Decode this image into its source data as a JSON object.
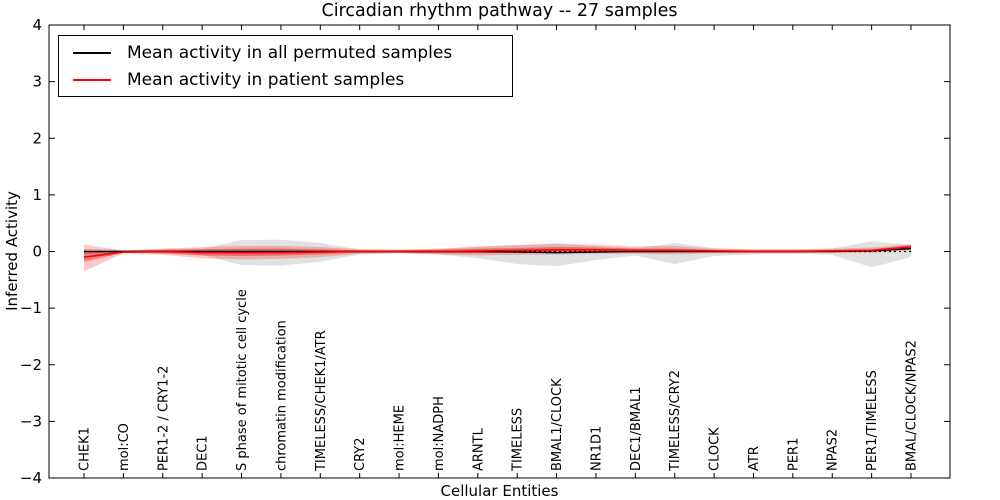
{
  "page": {
    "title": "Circadian rhythm pathway -- 27 samples"
  },
  "chart_data": {
    "type": "line",
    "title": "Circadian rhythm pathway -- 27 samples",
    "xlabel": "Cellular Entities",
    "ylabel": "Inferred Activity",
    "ylim": [
      -4,
      4
    ],
    "yticks": [
      -4,
      -3,
      -2,
      -1,
      0,
      1,
      2,
      3,
      4
    ],
    "grid": false,
    "legend_position": "upper left",
    "background_color": "#ffffff",
    "axis_color": "#000000",
    "categories": [
      "CHEK1",
      "mol:CO",
      "PER1-2 / CRY1-2",
      "DEC1",
      "S phase of mitotic cell cycle",
      "chromatin modification",
      "TIMELESS/CHEK1/ATR",
      "CRY2",
      "mol:HEME",
      "mol:NADPH",
      "ARNTL",
      "TIMELESS",
      "BMAL1/CLOCK",
      "NR1D1",
      "DEC1/BMAL1",
      "TIMELESS/CRY2",
      "CLOCK",
      "ATR",
      "PER1",
      "NPAS2",
      "PER1/TIMELESS",
      "BMAL/CLOCK/NPAS2"
    ],
    "series": [
      {
        "name": "Mean activity in all permuted samples",
        "color": "#000000",
        "values": [
          0,
          0,
          0,
          0,
          0,
          0,
          0,
          0,
          0,
          0,
          0,
          -0.01,
          -0.02,
          -0.01,
          0,
          0,
          0,
          0,
          0,
          0,
          0.01,
          0.05
        ]
      },
      {
        "name": "Mean activity in patient samples",
        "color": "#ff0000",
        "values": [
          -0.1,
          -0.01,
          0,
          -0.02,
          -0.02,
          -0.02,
          -0.01,
          0,
          0,
          0,
          0.01,
          0.02,
          0.03,
          0.03,
          0.02,
          0.02,
          0.01,
          0,
          0,
          0.01,
          0.02,
          0.08
        ]
      }
    ],
    "bands": [
      {
        "name": "permuted samples spread",
        "color": "#aaaaaa",
        "opacity": 0.35,
        "lo": [
          -0.05,
          -0.02,
          -0.04,
          -0.06,
          -0.24,
          -0.25,
          -0.18,
          -0.05,
          -0.03,
          -0.05,
          -0.12,
          -0.22,
          -0.26,
          -0.15,
          -0.07,
          -0.22,
          -0.08,
          -0.05,
          -0.04,
          -0.06,
          -0.28,
          -0.1
        ],
        "hi": [
          0.05,
          0.02,
          0.04,
          0.05,
          0.2,
          0.21,
          0.15,
          0.04,
          0.03,
          0.04,
          0.08,
          0.12,
          0.13,
          0.1,
          0.06,
          0.15,
          0.06,
          0.04,
          0.04,
          0.05,
          0.18,
          0.12
        ]
      },
      {
        "name": "patient samples spread outer",
        "color": "#ff0000",
        "opacity": 0.22,
        "lo": [
          -0.35,
          -0.03,
          -0.06,
          -0.12,
          -0.14,
          -0.13,
          -0.1,
          -0.04,
          -0.03,
          -0.05,
          -0.07,
          -0.06,
          -0.05,
          -0.04,
          -0.04,
          -0.05,
          -0.03,
          -0.03,
          -0.03,
          -0.02,
          -0.02,
          0.02
        ],
        "hi": [
          0.12,
          0.02,
          0.05,
          0.08,
          0.1,
          0.1,
          0.08,
          0.04,
          0.03,
          0.05,
          0.09,
          0.11,
          0.14,
          0.12,
          0.09,
          0.1,
          0.05,
          0.04,
          0.04,
          0.05,
          0.07,
          0.13
        ]
      },
      {
        "name": "patient samples spread inner",
        "color": "#dd1515",
        "opacity": 0.42,
        "lo": [
          -0.18,
          -0.02,
          -0.03,
          -0.07,
          -0.08,
          -0.07,
          -0.05,
          -0.02,
          -0.02,
          -0.03,
          -0.03,
          -0.02,
          -0.01,
          0,
          -0.02,
          -0.01,
          -0.01,
          -0.01,
          -0.01,
          0,
          0,
          0.04
        ],
        "hi": [
          0,
          0.01,
          0.03,
          0.04,
          0.05,
          0.05,
          0.04,
          0.02,
          0.02,
          0.03,
          0.05,
          0.06,
          0.08,
          0.07,
          0.05,
          0.05,
          0.03,
          0.02,
          0.02,
          0.03,
          0.04,
          0.11
        ]
      }
    ],
    "zero_line": {
      "value": 0,
      "style": "dotted",
      "color": "#000000"
    }
  }
}
